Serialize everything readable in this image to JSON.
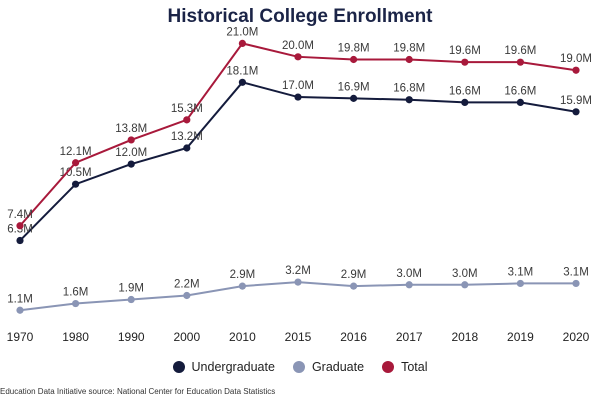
{
  "chart_data": {
    "type": "line",
    "title": "Historical College Enrollment",
    "xlabel": "",
    "ylabel": "",
    "ylim": [
      0,
      22
    ],
    "categories": [
      "1970",
      "1980",
      "1990",
      "2000",
      "2010",
      "2015",
      "2016",
      "2017",
      "2018",
      "2019",
      "2020"
    ],
    "series": [
      {
        "name": "Undergraduate",
        "color": "#141b3c",
        "values": [
          6.3,
          10.5,
          12.0,
          13.2,
          18.1,
          17.0,
          16.9,
          16.8,
          16.6,
          16.6,
          15.9
        ],
        "labels": [
          "6.3M",
          "10.5M",
          "12.0M",
          "13.2M",
          "18.1M",
          "17.0M",
          "16.9M",
          "16.8M",
          "16.6M",
          "16.6M",
          "15.9M"
        ]
      },
      {
        "name": "Graduate",
        "color": "#8a95b5",
        "values": [
          1.1,
          1.6,
          1.9,
          2.2,
          2.9,
          3.2,
          2.9,
          3.0,
          3.0,
          3.1,
          3.1
        ],
        "labels": [
          "1.1M",
          "1.6M",
          "1.9M",
          "2.2M",
          "2.9M",
          "3.2M",
          "2.9M",
          "3.0M",
          "3.0M",
          "3.1M",
          "3.1M"
        ]
      },
      {
        "name": "Total",
        "color": "#a8193b",
        "values": [
          7.4,
          12.1,
          13.8,
          15.3,
          21.0,
          20.0,
          19.8,
          19.8,
          19.6,
          19.6,
          19.0
        ],
        "labels": [
          "7.4M",
          "12.1M",
          "13.8M",
          "15.3M",
          "21.0M",
          "20.0M",
          "19.8M",
          "19.8M",
          "19.6M",
          "19.6M",
          "19.0M"
        ]
      }
    ],
    "legend": "bottom",
    "grid": false
  },
  "source_note": "Education Data Initiative source: National Center for Education Data Statistics"
}
